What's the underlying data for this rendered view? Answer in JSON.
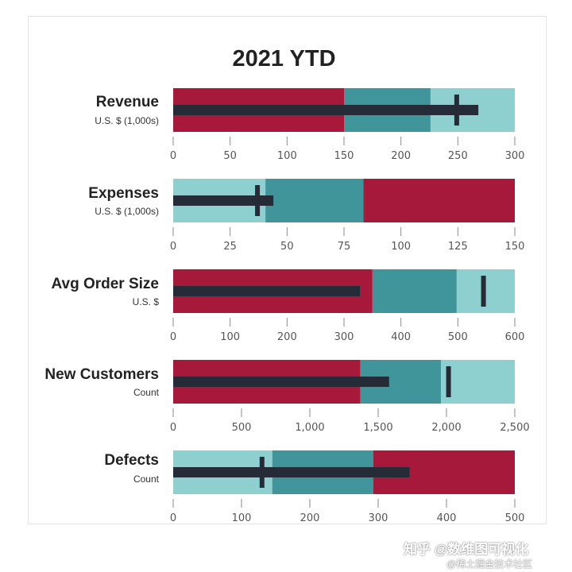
{
  "title": "2021 YTD",
  "watermark": "知乎 @数维图可视化",
  "watermark_sub": "@稀土掘金技术社区",
  "colors": {
    "dark_red": "#a6193a",
    "teal": "#40959a",
    "light_teal": "#8dd0cf",
    "measure": "#262b38"
  },
  "chart_data": [
    {
      "type": "bullet",
      "label": "Revenue",
      "sublabel": "U.S. $ (1,000s)",
      "ticks": [
        "0",
        "50",
        "100",
        "150",
        "200",
        "250",
        "300"
      ],
      "tick_values": [
        0,
        50,
        100,
        150,
        200,
        250,
        300
      ],
      "xlim": [
        0,
        300
      ],
      "ranges": [
        {
          "from": 0,
          "to": 150,
          "color": "#a6193a"
        },
        {
          "from": 150,
          "to": 226,
          "color": "#40959a"
        },
        {
          "from": 226,
          "to": 300,
          "color": "#8dd0cf"
        }
      ],
      "value": 268,
      "target": 249
    },
    {
      "type": "bullet",
      "label": "Expenses",
      "sublabel": "U.S. $ (1,000s)",
      "ticks": [
        "0",
        "25",
        "50",
        "75",
        "100",
        "125",
        "150"
      ],
      "tick_values": [
        0,
        25,
        50,
        75,
        100,
        125,
        150
      ],
      "xlim": [
        0,
        150
      ],
      "ranges": [
        {
          "from": 0,
          "to": 40.5,
          "color": "#8dd0cf"
        },
        {
          "from": 40.5,
          "to": 83.5,
          "color": "#40959a"
        },
        {
          "from": 83.5,
          "to": 150,
          "color": "#a6193a"
        }
      ],
      "value": 44,
      "target": 37
    },
    {
      "type": "bullet",
      "label": "Avg Order Size",
      "sublabel": "U.S. $",
      "ticks": [
        "0",
        "100",
        "200",
        "300",
        "400",
        "500",
        "600"
      ],
      "tick_values": [
        0,
        100,
        200,
        300,
        400,
        500,
        600
      ],
      "xlim": [
        0,
        600
      ],
      "ranges": [
        {
          "from": 0,
          "to": 350,
          "color": "#a6193a"
        },
        {
          "from": 350,
          "to": 498,
          "color": "#40959a"
        },
        {
          "from": 498,
          "to": 600,
          "color": "#8dd0cf"
        }
      ],
      "value": 328,
      "target": 545
    },
    {
      "type": "bullet",
      "label": "New Customers",
      "sublabel": "Count",
      "ticks": [
        "0",
        "500",
        "1,000",
        "1,500",
        "2,000",
        "2,500"
      ],
      "tick_values": [
        0,
        500,
        1000,
        1500,
        2000,
        2500
      ],
      "xlim": [
        0,
        2500
      ],
      "ranges": [
        {
          "from": 0,
          "to": 1370,
          "color": "#a6193a"
        },
        {
          "from": 1370,
          "to": 1960,
          "color": "#40959a"
        },
        {
          "from": 1960,
          "to": 2500,
          "color": "#8dd0cf"
        }
      ],
      "value": 1580,
      "target": 2015
    },
    {
      "type": "bullet",
      "label": "Defects",
      "sublabel": "Count",
      "ticks": [
        "0",
        "100",
        "200",
        "300",
        "400",
        "500"
      ],
      "tick_values": [
        0,
        100,
        200,
        300,
        400,
        500
      ],
      "xlim": [
        0,
        500
      ],
      "ranges": [
        {
          "from": 0,
          "to": 145,
          "color": "#8dd0cf"
        },
        {
          "from": 145,
          "to": 293,
          "color": "#40959a"
        },
        {
          "from": 293,
          "to": 500,
          "color": "#a6193a"
        }
      ],
      "value": 346,
      "target": 130
    }
  ]
}
